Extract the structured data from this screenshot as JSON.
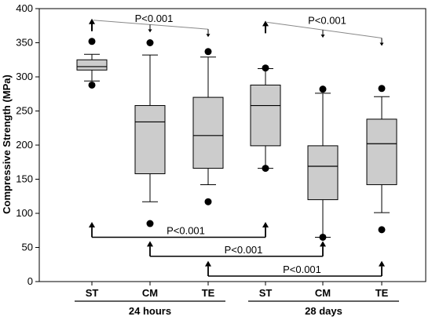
{
  "chart_data": {
    "type": "box",
    "ylabel": "Compressive Strength (MPa)",
    "xlabel": "",
    "ylim": [
      0,
      400
    ],
    "yticks": [
      0,
      50,
      100,
      150,
      200,
      250,
      300,
      350,
      400
    ],
    "grid": false,
    "legend": "none",
    "box_fill": "#cccccc",
    "groups": [
      {
        "label": "24 hours",
        "categories": [
          "ST",
          "CM",
          "TE"
        ]
      },
      {
        "label": "28 days",
        "categories": [
          "ST",
          "CM",
          "TE"
        ]
      }
    ],
    "boxes": [
      {
        "category": "ST",
        "group": "24 hours",
        "whisker_low": 294,
        "q1": 310,
        "median": 315,
        "q3": 325,
        "whisker_high": 333,
        "outliers": [
          288,
          352
        ]
      },
      {
        "category": "CM",
        "group": "24 hours",
        "whisker_low": 117,
        "q1": 158,
        "median": 234,
        "q3": 258,
        "whisker_high": 332,
        "outliers": [
          85,
          350
        ]
      },
      {
        "category": "TE",
        "group": "24 hours",
        "whisker_low": 142,
        "q1": 166,
        "median": 214,
        "q3": 270,
        "whisker_high": 329,
        "outliers": [
          117,
          337
        ]
      },
      {
        "category": "ST",
        "group": "28 days",
        "whisker_low": 166,
        "q1": 199,
        "median": 258,
        "q3": 288,
        "whisker_high": 312,
        "outliers": [
          166,
          313
        ]
      },
      {
        "category": "CM",
        "group": "28 days",
        "whisker_low": 65,
        "q1": 120,
        "median": 169,
        "q3": 199,
        "whisker_high": 276,
        "outliers": [
          65,
          282
        ]
      },
      {
        "category": "TE",
        "group": "28 days",
        "whisker_low": 101,
        "q1": 142,
        "median": 202,
        "q3": 238,
        "whisker_high": 271,
        "outliers": [
          76,
          283
        ]
      }
    ],
    "annotations": [
      {
        "text": "P<0.001",
        "from_box": 0,
        "to_boxes": [
          1,
          2
        ],
        "position": "top",
        "y": 383,
        "drop_y": 363
      },
      {
        "text": "P<0.001",
        "from_box": 3,
        "to_boxes": [
          4,
          5
        ],
        "position": "top",
        "y": 380,
        "drop_y": 350
      },
      {
        "text": "P<0.001",
        "from_box": 0,
        "to_box": 3,
        "position": "bottom",
        "y": 65,
        "top_y": 85
      },
      {
        "text": "P<0.001",
        "from_box": 1,
        "to_box": 4,
        "position": "bottom",
        "y": 37,
        "top_y": 57
      },
      {
        "text": "P<0.001",
        "from_box": 2,
        "to_box": 5,
        "position": "bottom",
        "y": 8,
        "top_y": 28
      }
    ]
  }
}
